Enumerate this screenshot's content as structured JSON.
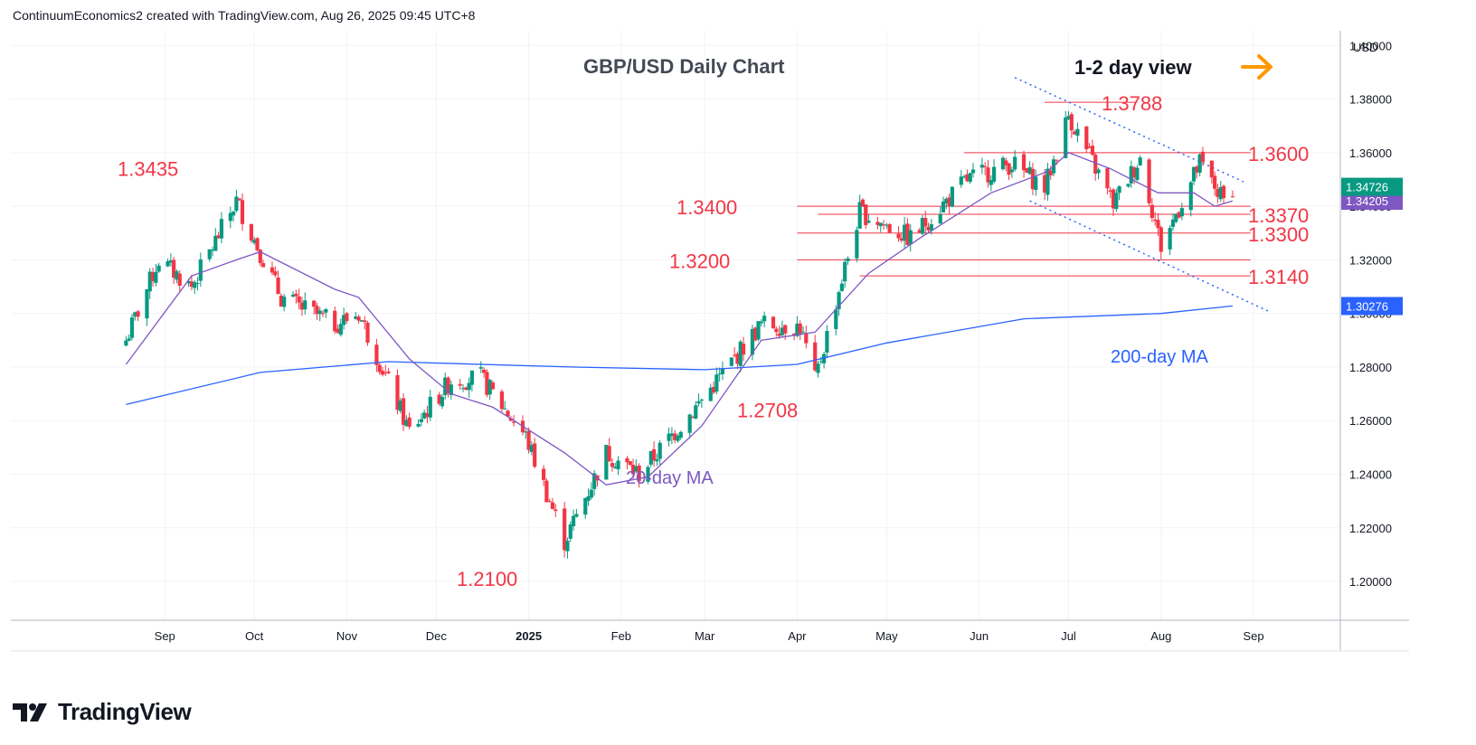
{
  "header": {
    "created_by": "ContinuumEconomics2 created with TradingView.com, Aug 26, 2025 09:45 UTC+8"
  },
  "brand": {
    "name": "TradingView"
  },
  "colors": {
    "up": "#089981",
    "down": "#f23645",
    "ma20": "#7e57c2",
    "ma200": "#2962ff",
    "label_red": "#f23645",
    "arrow": "#ff9800"
  },
  "chart_data": {
    "type": "candlestick",
    "title": "GBP/USD Daily Chart",
    "view_label": "1-2 day view",
    "currency": "USD",
    "y_ticks": [
      "1.40000",
      "1.38000",
      "1.36000",
      "1.34000",
      "1.32000",
      "1.30000",
      "1.28000",
      "1.26000",
      "1.24000",
      "1.22000",
      "1.20000"
    ],
    "ylim": [
      1.1855,
      1.4055
    ],
    "x_ticks": [
      "Sep",
      "Oct",
      "Nov",
      "Dec",
      "2025",
      "Feb",
      "Mar",
      "Apr",
      "May",
      "Jun",
      "Jul",
      "Aug",
      "Sep"
    ],
    "last_price": "1.34726",
    "ma20_value": "1.34205",
    "ma200_value": "1.30276",
    "key_levels": [
      "1.3788",
      "1.3600",
      "1.3400",
      "1.3370",
      "1.3300",
      "1.3200",
      "1.3140"
    ],
    "annotations": [
      "1.3435",
      "1.2100",
      "1.2708"
    ],
    "ma_labels": [
      "20-day MA",
      "200-day MA"
    ],
    "price_path": [
      [
        "Aug 19 2024",
        1.29
      ],
      [
        "Aug 30 2024",
        1.32
      ],
      [
        "Sep 10 2024",
        1.31
      ],
      [
        "Sep 25 2024",
        1.342
      ],
      [
        "Oct 10 2024",
        1.306
      ],
      [
        "Oct 28 2024",
        1.296
      ],
      [
        "Nov 05 2024",
        1.3
      ],
      [
        "Nov 22 2024",
        1.256
      ],
      [
        "Dec 06 2024",
        1.275
      ],
      [
        "Dec 16 2024",
        1.276
      ],
      [
        "Dec 31 2024",
        1.254
      ],
      [
        "Jan 13 2025",
        1.215
      ],
      [
        "Jan 27 2025",
        1.248
      ],
      [
        "Feb 07 2025",
        1.24
      ],
      [
        "Feb 26 2025",
        1.265
      ],
      [
        "Mar 20 2025",
        1.296
      ],
      [
        "Apr 02 2025",
        1.295
      ],
      [
        "Apr 07 2025",
        1.275
      ],
      [
        "Apr 22 2025",
        1.338
      ],
      [
        "May 09 2025",
        1.328
      ],
      [
        "May 28 2025",
        1.35
      ],
      [
        "Jun 12 2025",
        1.356
      ],
      [
        "Jun 23 2025",
        1.347
      ],
      [
        "Jul 01 2025",
        1.374
      ],
      [
        "Jul 16 2025",
        1.341
      ],
      [
        "Jul 25 2025",
        1.358
      ],
      [
        "Aug 01 2025",
        1.325
      ],
      [
        "Aug 14 2025",
        1.356
      ],
      [
        "Aug 22 2025",
        1.342
      ],
      [
        "Aug 25 2025",
        1.3472
      ]
    ],
    "ma20_path": [
      [
        "Aug 19 2024",
        1.281
      ],
      [
        "Sep 10 2024",
        1.314
      ],
      [
        "Sep 25 2024",
        1.32
      ],
      [
        "Oct 03 2024",
        1.323
      ],
      [
        "Oct 28 2024",
        1.309
      ],
      [
        "Nov 05 2024",
        1.306
      ],
      [
        "Nov 22 2024",
        1.283
      ],
      [
        "Dec 06 2024",
        1.27
      ],
      [
        "Dec 20 2024",
        1.265
      ],
      [
        "Jan 13 2025",
        1.248
      ],
      [
        "Jan 27 2025",
        1.236
      ],
      [
        "Feb 10 2025",
        1.239
      ],
      [
        "Feb 28 2025",
        1.258
      ],
      [
        "Mar 20 2025",
        1.29
      ],
      [
        "Apr 07 2025",
        1.293
      ],
      [
        "Apr 25 2025",
        1.315
      ],
      [
        "May 12 2025",
        1.328
      ],
      [
        "Jun 05 2025",
        1.345
      ],
      [
        "Jun 24 2025",
        1.353
      ],
      [
        "Jul 01 2025",
        1.36
      ],
      [
        "Jul 15 2025",
        1.354
      ],
      [
        "Jul 31 2025",
        1.345
      ],
      [
        "Aug 12 2025",
        1.345
      ],
      [
        "Aug 19 2025",
        1.34
      ],
      [
        "Aug 25 2025",
        1.342
      ]
    ],
    "ma200_path": [
      [
        "Aug 19 2024",
        1.266
      ],
      [
        "Oct 03 2024",
        1.278
      ],
      [
        "Nov 15 2024",
        1.282
      ],
      [
        "Jan 15 2025",
        1.28
      ],
      [
        "Mar 01 2025",
        1.279
      ],
      [
        "Apr 01 2025",
        1.281
      ],
      [
        "May 01 2025",
        1.289
      ],
      [
        "Jun 16 2025",
        1.298
      ],
      [
        "Aug 01 2025",
        1.3
      ],
      [
        "Aug 25 2025",
        1.3028
      ]
    ],
    "trend_upper": [
      [
        "Jun 13 2025",
        1.388
      ],
      [
        "Aug 25 2025",
        1.351
      ]
    ],
    "trend_lower": [
      [
        "Jun 18 2025",
        1.342
      ],
      [
        "Aug 25 2025",
        1.307
      ]
    ]
  }
}
